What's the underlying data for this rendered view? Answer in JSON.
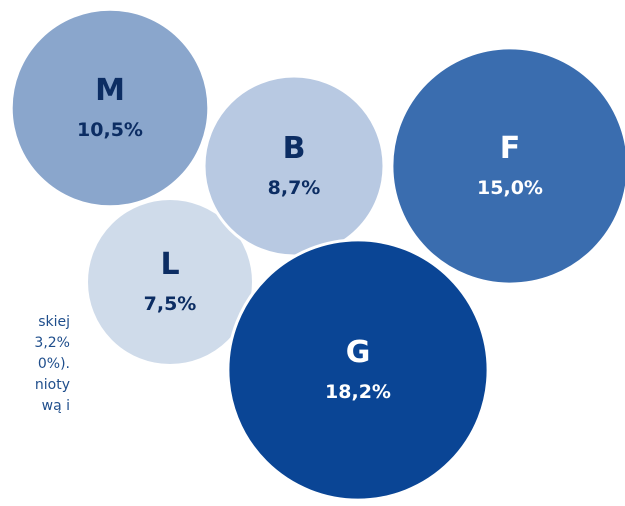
{
  "side_text_lines": [
    "skiej",
    "3,2%",
    "0%).",
    "nioty",
    "wą  i"
  ],
  "chart_data": {
    "type": "bubble",
    "title": "",
    "bubbles": [
      {
        "label": "M",
        "value": 10.5,
        "value_label": "10,5%",
        "color": "#8aa6cc",
        "text_color": "#0c2d63"
      },
      {
        "label": "B",
        "value": 8.7,
        "value_label": "8,7%",
        "color": "#b8c9e2",
        "text_color": "#0c2d63"
      },
      {
        "label": "F",
        "value": 15.0,
        "value_label": "15,0%",
        "color": "#3a6daf",
        "text_color": "#ffffff"
      },
      {
        "label": "L",
        "value": 7.5,
        "value_label": "7,5%",
        "color": "#cfdbea",
        "text_color": "#0c2d63"
      },
      {
        "label": "G",
        "value": 18.2,
        "value_label": "18,2%",
        "color": "#0a4595",
        "text_color": "#ffffff"
      }
    ]
  }
}
